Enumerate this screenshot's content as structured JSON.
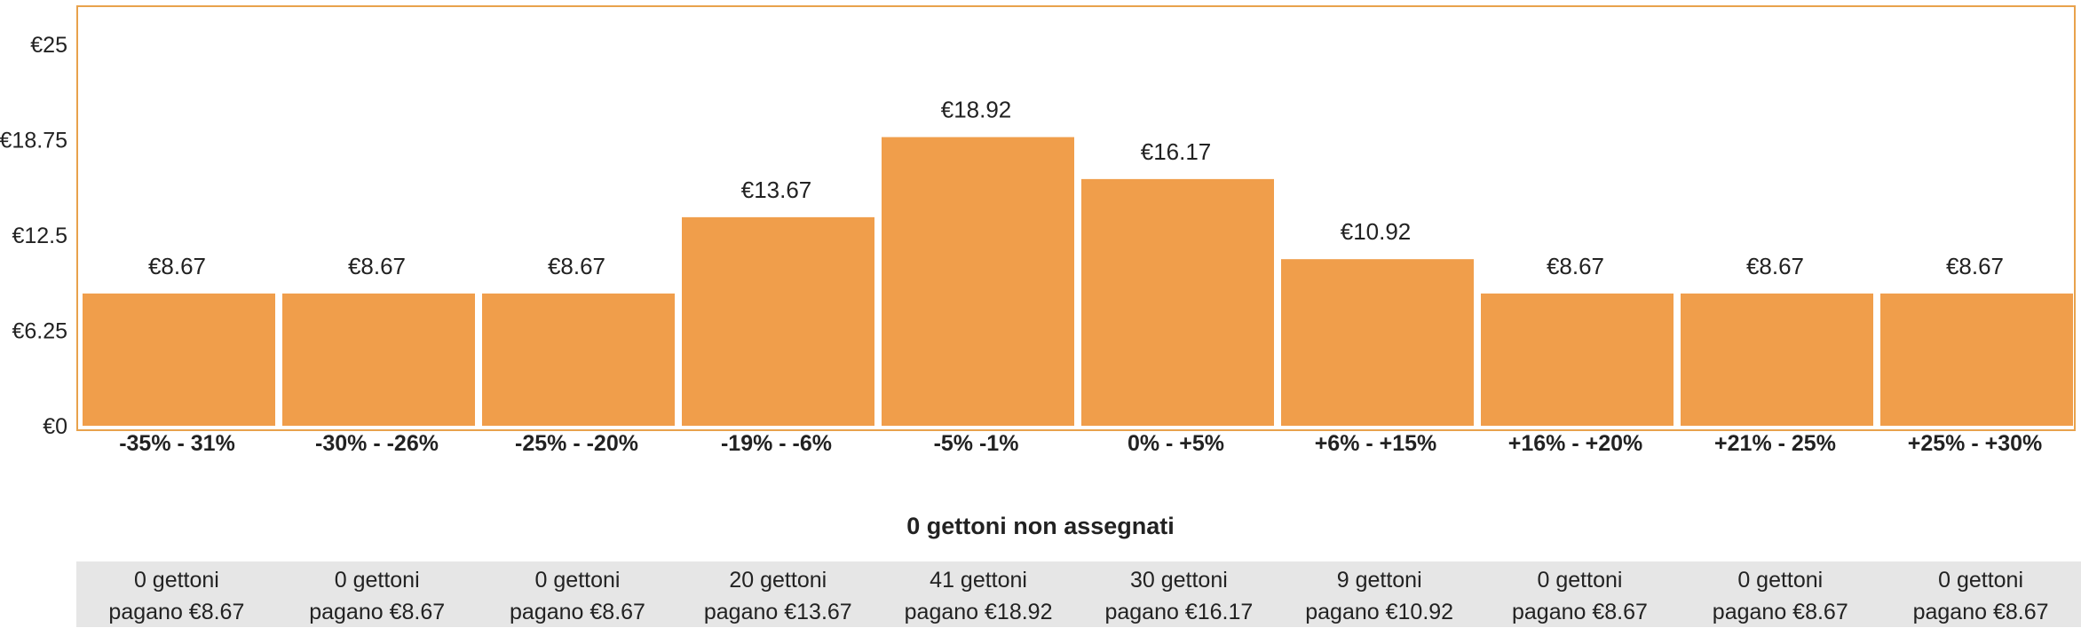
{
  "chart_data": {
    "type": "bar",
    "categories": [
      "-35% - 31%",
      "-30% - -26%",
      "-25% - -20%",
      "-19% - -6%",
      "-5% -1%",
      "0% - +5%",
      "+6% - +15%",
      "+16% - +20%",
      "+21% - 25%",
      "+25% - +30%"
    ],
    "values": [
      8.67,
      8.67,
      8.67,
      13.67,
      18.92,
      16.17,
      10.92,
      8.67,
      8.67,
      8.67
    ],
    "value_labels": [
      "€8.67",
      "€8.67",
      "€8.67",
      "€13.67",
      "€18.92",
      "€16.17",
      "€10.92",
      "€8.67",
      "€8.67",
      "€8.67"
    ],
    "yticks": [
      0,
      6.25,
      12.5,
      18.75,
      25
    ],
    "ytick_labels": [
      "€0",
      "€6.25",
      "€12.5",
      "€18.75",
      "€25"
    ],
    "ylim": [
      0,
      27.5
    ],
    "bar_color": "#f09e4b",
    "frame_color": "#e8a24c",
    "grid": false
  },
  "status": "0 gettoni non assegnati",
  "table": [
    {
      "tokens": "0 gettoni",
      "price": "pagano €8.67"
    },
    {
      "tokens": "0 gettoni",
      "price": "pagano €8.67"
    },
    {
      "tokens": "0 gettoni",
      "price": "pagano €8.67"
    },
    {
      "tokens": "20 gettoni",
      "price": "pagano €13.67"
    },
    {
      "tokens": "41 gettoni",
      "price": "pagano €18.92"
    },
    {
      "tokens": "30 gettoni",
      "price": "pagano €16.17"
    },
    {
      "tokens": "9 gettoni",
      "price": "pagano €10.92"
    },
    {
      "tokens": "0 gettoni",
      "price": "pagano €8.67"
    },
    {
      "tokens": "0 gettoni",
      "price": "pagano €8.67"
    },
    {
      "tokens": "0 gettoni",
      "price": "pagano €8.67"
    }
  ]
}
